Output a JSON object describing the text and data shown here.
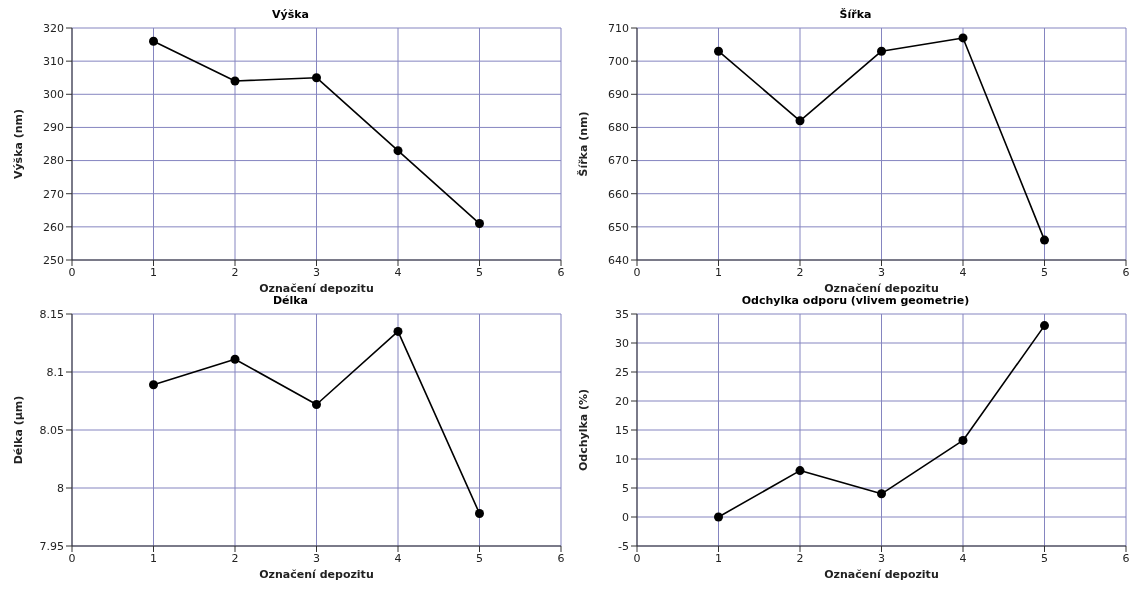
{
  "chart_data": [
    {
      "type": "line",
      "title": "Výška",
      "xlabel": "Označení depozitu",
      "ylabel": "Výška (nm)",
      "x": [
        1,
        2,
        3,
        4,
        5
      ],
      "series": [
        {
          "color": "#000000",
          "values": [
            316,
            304,
            305,
            283,
            261
          ]
        }
      ],
      "xlim": [
        0,
        6
      ],
      "xticks": [
        0,
        1,
        2,
        3,
        4,
        5,
        6
      ],
      "ylim": [
        250,
        320
      ],
      "yticks": [
        250,
        260,
        270,
        280,
        290,
        300,
        310,
        320
      ],
      "grid": true,
      "marker": "circle",
      "line_style": "solid"
    },
    {
      "type": "line",
      "title": "Šířka",
      "xlabel": "Označení depozitu",
      "ylabel": "Šířka (nm)",
      "x": [
        1,
        2,
        3,
        4,
        5
      ],
      "series": [
        {
          "color": "#000000",
          "values": [
            703,
            682,
            703,
            707,
            646
          ]
        }
      ],
      "xlim": [
        0,
        6
      ],
      "xticks": [
        0,
        1,
        2,
        3,
        4,
        5,
        6
      ],
      "ylim": [
        640,
        710
      ],
      "yticks": [
        640,
        650,
        660,
        670,
        680,
        690,
        700,
        710
      ],
      "grid": true,
      "marker": "circle",
      "line_style": "solid"
    },
    {
      "type": "line",
      "title": "Délka",
      "xlabel": "Označení depozitu",
      "ylabel": "Délka (µm)",
      "x": [
        1,
        2,
        3,
        4,
        5
      ],
      "series": [
        {
          "color": "#000000",
          "values": [
            8.089,
            8.111,
            8.072,
            8.135,
            7.978
          ]
        }
      ],
      "xlim": [
        0,
        6
      ],
      "xticks": [
        0,
        1,
        2,
        3,
        4,
        5,
        6
      ],
      "ylim": [
        7.95,
        8.15
      ],
      "yticks": [
        7.95,
        8,
        8.05,
        8.1,
        8.15
      ],
      "grid": true,
      "marker": "circle",
      "line_style": "solid"
    },
    {
      "type": "line",
      "title": "Odchylka odporu (vlivem geometrie)",
      "xlabel": "Označení depozitu",
      "ylabel": "Odchylka (%)",
      "x": [
        1,
        2,
        3,
        4,
        5
      ],
      "series": [
        {
          "color": "#000000",
          "values": [
            0,
            8,
            4,
            13.2,
            33
          ]
        }
      ],
      "xlim": [
        0,
        6
      ],
      "xticks": [
        0,
        1,
        2,
        3,
        4,
        5,
        6
      ],
      "ylim": [
        -5,
        35
      ],
      "yticks": [
        -5,
        0,
        5,
        10,
        15,
        20,
        25,
        30,
        35
      ],
      "grid": true,
      "marker": "circle",
      "line_style": "solid"
    }
  ]
}
